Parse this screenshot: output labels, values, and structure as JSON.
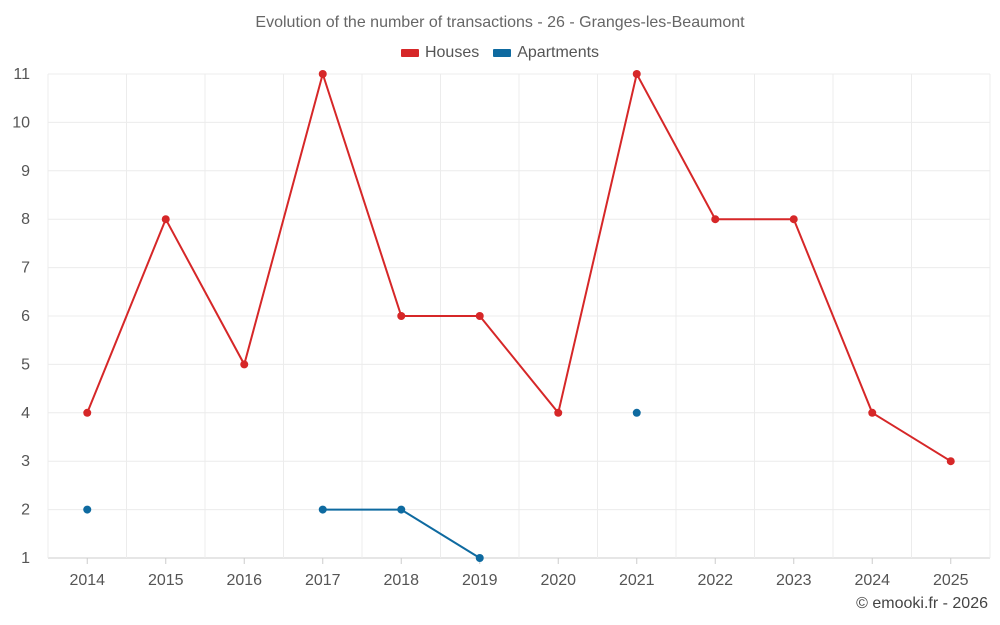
{
  "chart_data": {
    "type": "line",
    "title": "Evolution of the number of transactions - 26 - Granges-les-Beaumont",
    "xlabel": "",
    "ylabel": "",
    "categories": [
      "2014",
      "2015",
      "2016",
      "2017",
      "2018",
      "2019",
      "2020",
      "2021",
      "2022",
      "2023",
      "2024",
      "2025"
    ],
    "ylim": [
      1,
      11
    ],
    "yticks": [
      1,
      2,
      3,
      4,
      5,
      6,
      7,
      8,
      9,
      10,
      11
    ],
    "grid": true,
    "legend_position": "top-center",
    "series": [
      {
        "name": "Houses",
        "color": "#d62728",
        "values": [
          4,
          8,
          5,
          11,
          6,
          6,
          4,
          11,
          8,
          8,
          4,
          3
        ]
      },
      {
        "name": "Apartments",
        "color": "#0e6aa0",
        "values": [
          2,
          null,
          null,
          2,
          2,
          1,
          null,
          4,
          null,
          null,
          null,
          null
        ]
      }
    ]
  },
  "credit": "© emooki.fr - 2026"
}
